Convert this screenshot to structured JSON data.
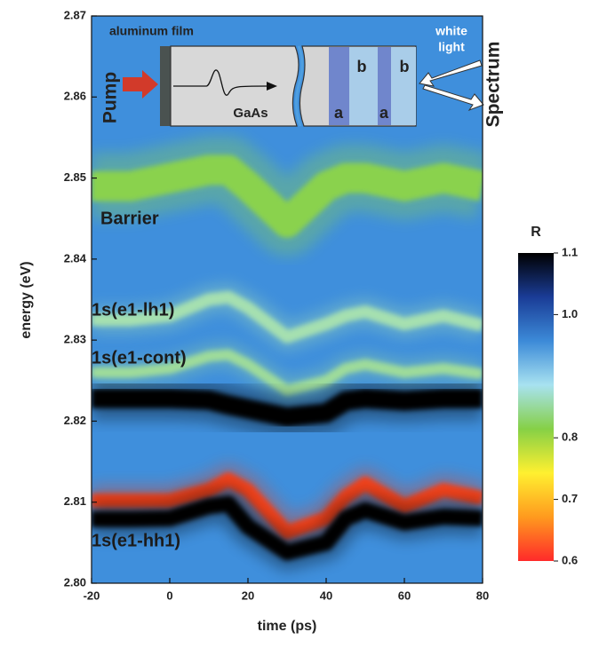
{
  "chart_data": {
    "type": "heatmap",
    "xlabel": "time (ps)",
    "ylabel": "energy (eV)",
    "xlim": [
      -20,
      80
    ],
    "xticks": [
      -20,
      0,
      20,
      40,
      60,
      80
    ],
    "ylim": [
      2.8,
      2.87
    ],
    "yticks": [
      {
        "value": 2.8,
        "label": "2.80"
      },
      2.81,
      2.82,
      2.83,
      2.84,
      2.85,
      2.86,
      2.87
    ],
    "background_color": "#3f8fdc",
    "x": [
      -20,
      -10,
      0,
      10,
      15,
      20,
      30,
      40,
      45,
      50,
      60,
      70,
      80
    ],
    "series": [
      {
        "name": "Barrier",
        "color": "#8ad24e",
        "values": [
          2.849,
          2.849,
          2.85,
          2.851,
          2.851,
          2.849,
          2.8445,
          2.849,
          2.85,
          2.85,
          2.849,
          2.85,
          2.849
        ]
      },
      {
        "name": "1s(e1-lh1)",
        "color": "#a6e0b0",
        "values": [
          2.8325,
          2.8325,
          2.833,
          2.835,
          2.8353,
          2.834,
          2.8304,
          2.832,
          2.833,
          2.8335,
          2.832,
          2.833,
          2.8318
        ]
      },
      {
        "name": "1s(e1-cont)",
        "color": "#9fdc9a",
        "values": [
          2.826,
          2.826,
          2.8265,
          2.828,
          2.8282,
          2.827,
          2.8238,
          2.825,
          2.8265,
          2.827,
          2.826,
          2.8265,
          2.8258
        ]
      },
      {
        "color": "#000000",
        "values": [
          2.8228,
          2.8228,
          2.8228,
          2.8226,
          2.822,
          2.8215,
          2.8205,
          2.821,
          2.8225,
          2.8228,
          2.8225,
          2.8228,
          2.8228
        ]
      },
      {
        "name": "1s(e1-hh1)",
        "color": "#f0421c",
        "values": [
          2.8102,
          2.8102,
          2.8102,
          2.8115,
          2.8128,
          2.8115,
          2.8063,
          2.808,
          2.8107,
          2.8123,
          2.8095,
          2.8115,
          2.8105
        ]
      },
      {
        "color": "#000000",
        "values": [
          2.8079,
          2.8079,
          2.808,
          2.8095,
          2.8098,
          2.807,
          2.8038,
          2.805,
          2.808,
          2.809,
          2.8075,
          2.8082,
          2.808
        ]
      }
    ],
    "colorbar": {
      "label": "R",
      "lim": [
        0.6,
        1.1
      ],
      "ticks": [
        0.6,
        0.7,
        0.8,
        {
          "value": 1,
          "label": "1.0"
        },
        1.1
      ],
      "colors": [
        "#ff2a2a",
        "#ff9a1e",
        "#fff030",
        "#86d046",
        "#a8e2f0",
        "#3c8ad8",
        "#1a3c96",
        "#000000"
      ]
    },
    "inset": {
      "film_label": "aluminum film",
      "pump": "Pump",
      "medium": "GaAs",
      "layers": [
        "a",
        "b",
        "a",
        "b"
      ],
      "light": [
        "white",
        "light"
      ],
      "output": "Spectrum"
    }
  }
}
